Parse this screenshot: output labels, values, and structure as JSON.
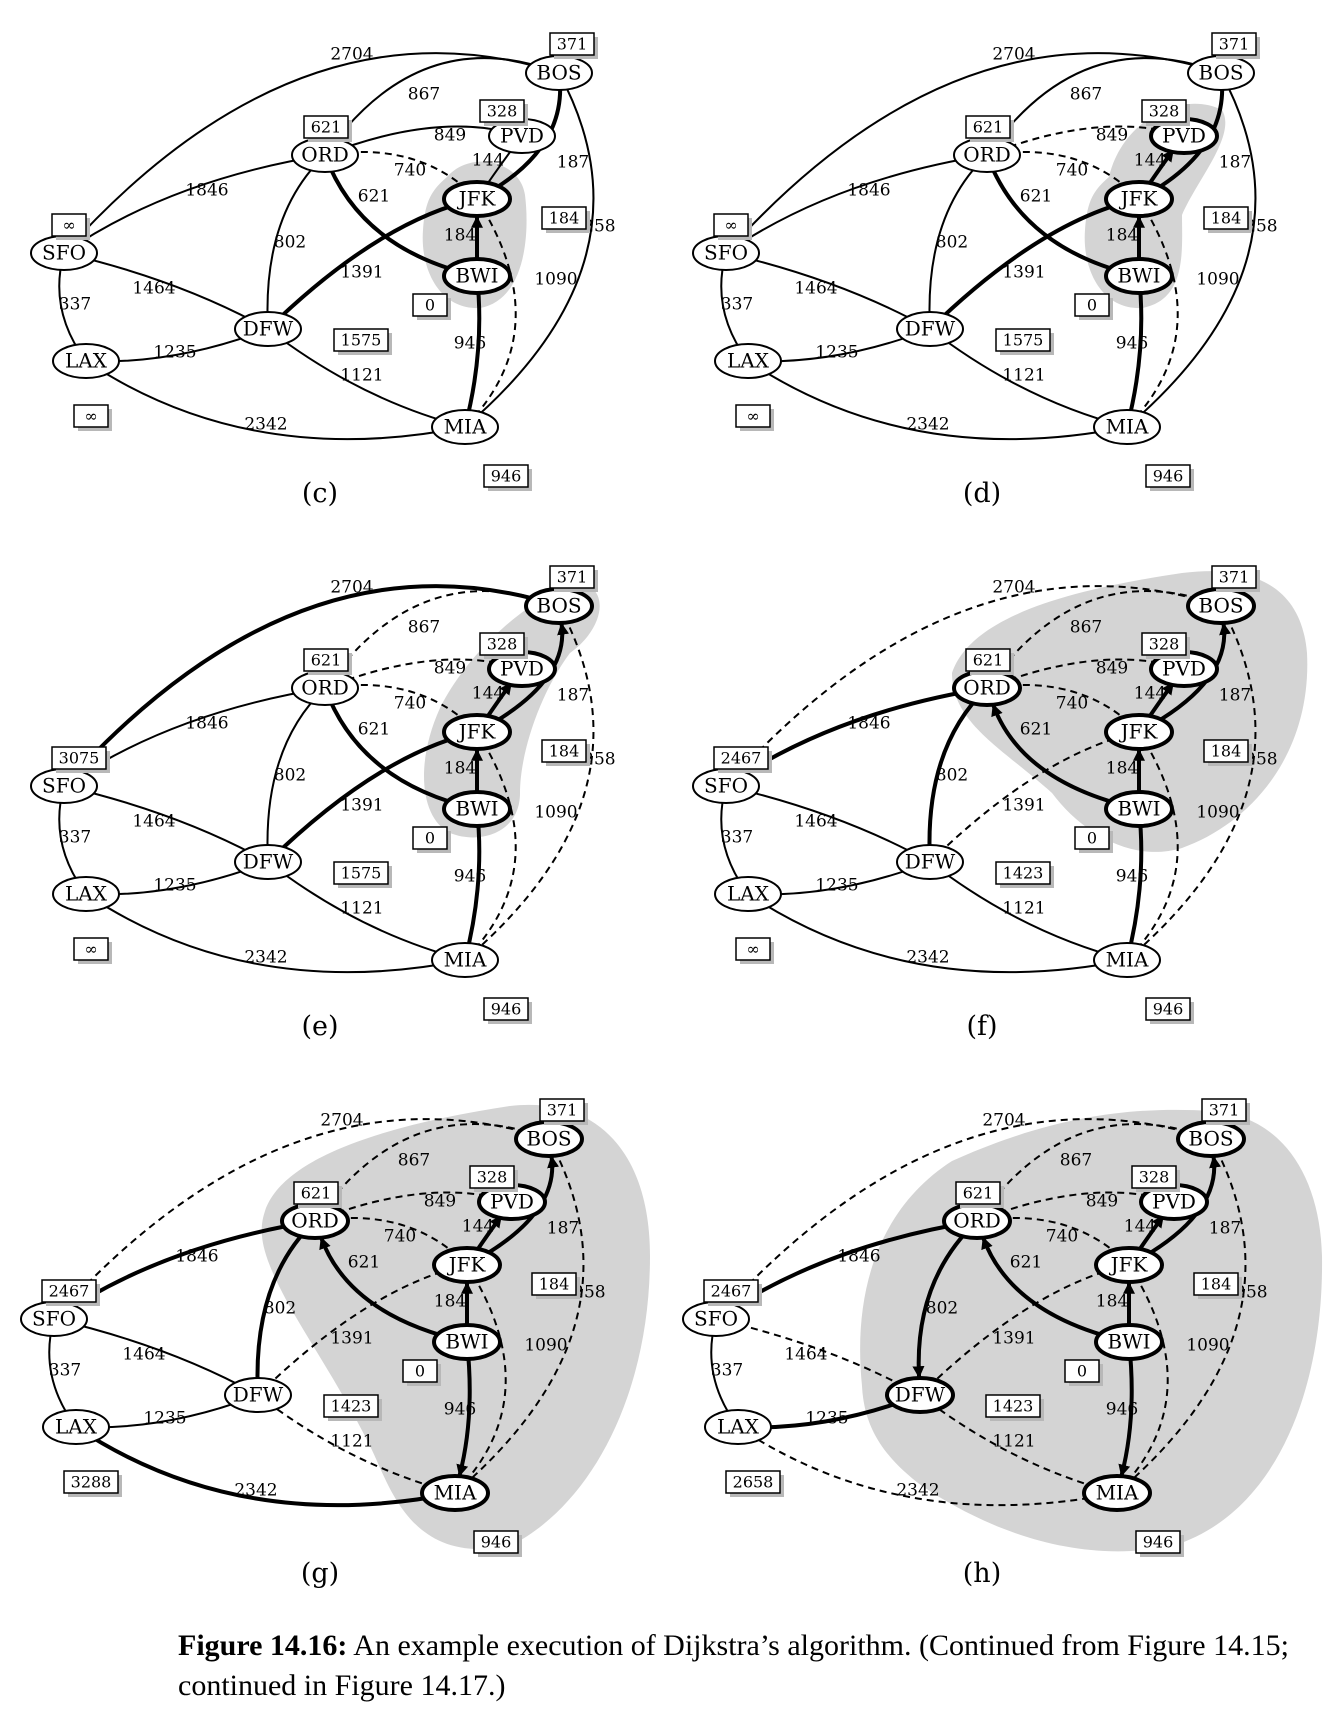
{
  "caption": {
    "label": "Figure 14.16:",
    "text": "An example execution of Dijkstra’s algorithm. (Continued from Figure 14.15; continued in Figure 14.17.)"
  },
  "nodes": [
    "SFO",
    "LAX",
    "ORD",
    "DFW",
    "BOS",
    "PVD",
    "JFK",
    "BWI",
    "MIA"
  ],
  "edges": [
    {
      "a": "SFO",
      "b": "BOS",
      "w": "2704"
    },
    {
      "a": "ORD",
      "b": "BOS",
      "w": "867"
    },
    {
      "a": "ORD",
      "b": "PVD",
      "w": "849"
    },
    {
      "a": "ORD",
      "b": "JFK",
      "w": "740"
    },
    {
      "a": "ORD",
      "b": "BWI",
      "w": "621"
    },
    {
      "a": "ORD",
      "b": "DFW",
      "w": "802"
    },
    {
      "a": "SFO",
      "b": "ORD",
      "w": "1846"
    },
    {
      "a": "SFO",
      "b": "DFW",
      "w": "1464"
    },
    {
      "a": "SFO",
      "b": "LAX",
      "w": "337"
    },
    {
      "a": "LAX",
      "b": "DFW",
      "w": "1235"
    },
    {
      "a": "LAX",
      "b": "MIA",
      "w": "2342"
    },
    {
      "a": "DFW",
      "b": "JFK",
      "w": "1391"
    },
    {
      "a": "DFW",
      "b": "MIA",
      "w": "1121"
    },
    {
      "a": "JFK",
      "b": "PVD",
      "w": "144"
    },
    {
      "a": "JFK",
      "b": "BOS",
      "w": "187"
    },
    {
      "a": "BWI",
      "b": "JFK",
      "w": "184"
    },
    {
      "a": "BWI",
      "b": "MIA",
      "w": "946"
    },
    {
      "a": "JFK",
      "b": "MIA",
      "w": "1090"
    },
    {
      "a": "BOS",
      "b": "MIA",
      "w": "1258"
    }
  ],
  "panels": [
    {
      "label": "(c)",
      "dist": {
        "SFO": "∞",
        "LAX": "∞",
        "ORD": "621",
        "DFW": "1575",
        "BOS": "371",
        "PVD": "328",
        "JFK": "184",
        "BWI": "0",
        "MIA": "946"
      },
      "cloud": [
        "BWI",
        "JFK"
      ],
      "bold": [
        "BWI-JFK",
        "JFK-BOS",
        "BWI-ORD",
        "JFK-DFW",
        "BWI-MIA"
      ],
      "dashed": [
        "JFK-ORD",
        "JFK-MIA"
      ],
      "arrows": [
        "BWI-JFK"
      ]
    },
    {
      "label": "(d)",
      "dist": {
        "SFO": "∞",
        "LAX": "∞",
        "ORD": "621",
        "DFW": "1575",
        "BOS": "371",
        "PVD": "328",
        "JFK": "184",
        "BWI": "0",
        "MIA": "946"
      },
      "cloud": [
        "BWI",
        "JFK",
        "PVD"
      ],
      "bold": [
        "BWI-JFK",
        "JFK-PVD",
        "JFK-BOS",
        "BWI-ORD",
        "JFK-DFW",
        "BWI-MIA"
      ],
      "dashed": [
        "JFK-ORD",
        "JFK-MIA",
        "ORD-PVD"
      ],
      "arrows": [
        "BWI-JFK",
        "JFK-PVD"
      ]
    },
    {
      "label": "(e)",
      "dist": {
        "SFO": "3075",
        "LAX": "∞",
        "ORD": "621",
        "DFW": "1575",
        "BOS": "371",
        "PVD": "328",
        "JFK": "184",
        "BWI": "0",
        "MIA": "946"
      },
      "cloud": [
        "BWI",
        "JFK",
        "PVD",
        "BOS"
      ],
      "bold": [
        "BWI-JFK",
        "JFK-PVD",
        "JFK-BOS",
        "BWI-ORD",
        "JFK-DFW",
        "BWI-MIA",
        "SFO-BOS"
      ],
      "dashed": [
        "JFK-ORD",
        "JFK-MIA",
        "ORD-PVD",
        "ORD-BOS",
        "BOS-MIA"
      ],
      "arrows": [
        "BWI-JFK",
        "JFK-PVD",
        "JFK-BOS"
      ]
    },
    {
      "label": "(f)",
      "dist": {
        "SFO": "2467",
        "LAX": "∞",
        "ORD": "621",
        "DFW": "1423",
        "BOS": "371",
        "PVD": "328",
        "JFK": "184",
        "BWI": "0",
        "MIA": "946"
      },
      "cloud": [
        "BWI",
        "JFK",
        "PVD",
        "BOS",
        "ORD"
      ],
      "bold": [
        "BWI-JFK",
        "JFK-PVD",
        "JFK-BOS",
        "BWI-ORD",
        "BWI-MIA",
        "SFO-ORD",
        "ORD-DFW"
      ],
      "dashed": [
        "JFK-ORD",
        "JFK-MIA",
        "ORD-PVD",
        "ORD-BOS",
        "BOS-MIA",
        "SFO-BOS",
        "JFK-DFW"
      ],
      "arrows": [
        "BWI-JFK",
        "JFK-PVD",
        "JFK-BOS",
        "BWI-ORD"
      ]
    },
    {
      "label": "(g)",
      "dist": {
        "SFO": "2467",
        "LAX": "3288",
        "ORD": "621",
        "DFW": "1423",
        "BOS": "371",
        "PVD": "328",
        "JFK": "184",
        "BWI": "0",
        "MIA": "946"
      },
      "cloud": [
        "BWI",
        "JFK",
        "PVD",
        "BOS",
        "ORD",
        "MIA"
      ],
      "bold": [
        "BWI-JFK",
        "JFK-PVD",
        "JFK-BOS",
        "BWI-ORD",
        "BWI-MIA",
        "SFO-ORD",
        "ORD-DFW",
        "LAX-MIA"
      ],
      "dashed": [
        "JFK-ORD",
        "JFK-MIA",
        "ORD-PVD",
        "ORD-BOS",
        "BOS-MIA",
        "SFO-BOS",
        "JFK-DFW",
        "DFW-MIA"
      ],
      "arrows": [
        "BWI-JFK",
        "JFK-PVD",
        "JFK-BOS",
        "BWI-ORD",
        "BWI-MIA"
      ]
    },
    {
      "label": "(h)",
      "dist": {
        "SFO": "2467",
        "LAX": "2658",
        "ORD": "621",
        "DFW": "1423",
        "BOS": "371",
        "PVD": "328",
        "JFK": "184",
        "BWI": "0",
        "MIA": "946"
      },
      "cloud": [
        "BWI",
        "JFK",
        "PVD",
        "BOS",
        "ORD",
        "MIA",
        "DFW"
      ],
      "bold": [
        "BWI-JFK",
        "JFK-PVD",
        "JFK-BOS",
        "BWI-ORD",
        "BWI-MIA",
        "SFO-ORD",
        "ORD-DFW",
        "LAX-DFW"
      ],
      "dashed": [
        "JFK-ORD",
        "JFK-MIA",
        "ORD-PVD",
        "ORD-BOS",
        "BOS-MIA",
        "SFO-BOS",
        "JFK-DFW",
        "DFW-MIA",
        "SFO-DFW",
        "LAX-MIA"
      ],
      "arrows": [
        "BWI-JFK",
        "JFK-PVD",
        "JFK-BOS",
        "BWI-ORD",
        "BWI-MIA",
        "ORD-DFW"
      ]
    }
  ]
}
